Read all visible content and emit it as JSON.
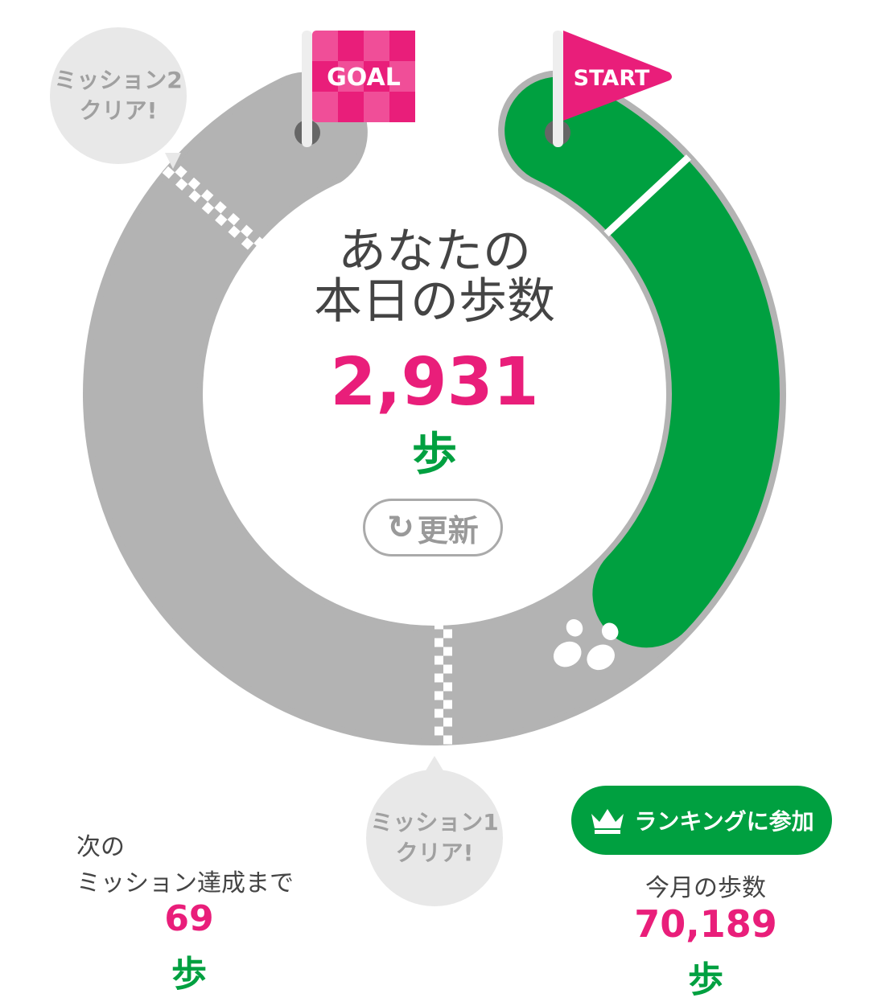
{
  "progress": {
    "today_steps_fraction_of_course": 0.35
  },
  "colors": {
    "pink": "#e91e7a",
    "green": "#00a040",
    "track_gray": "#b3b3b3",
    "bubble_gray": "#e8e8e8"
  },
  "flags": {
    "goal": "GOAL",
    "start": "START"
  },
  "bubbles": {
    "mission2": [
      "ミッション2",
      "クリア!"
    ],
    "mission1": [
      "ミッション1",
      "クリア!"
    ]
  },
  "today": {
    "title_line1": "あなたの",
    "title_line2": "本日の歩数",
    "steps": "2,931",
    "unit": "歩",
    "refresh_label": "更新",
    "refresh_icon": "refresh-icon"
  },
  "next_mission": {
    "label_line1": "次の",
    "label_line2": "ミッション達成まで",
    "steps": "69",
    "unit": "歩"
  },
  "monthly": {
    "ranking_button": "ランキングに参加",
    "ranking_icon": "crown-icon",
    "label": "今月の歩数",
    "steps": "70,189",
    "unit": "歩"
  },
  "footprint_icon": "footprints-icon"
}
